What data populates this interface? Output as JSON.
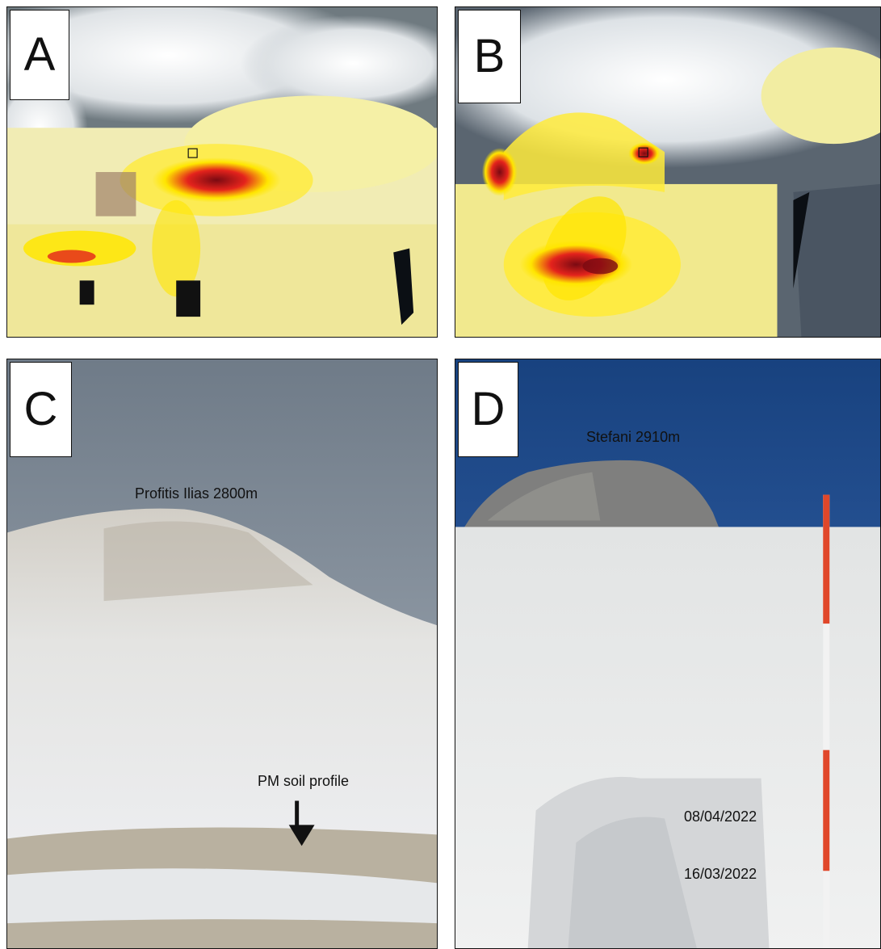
{
  "panels": [
    {
      "label": "A"
    },
    {
      "label": "B"
    },
    {
      "label": "C",
      "summit_label": "Profitis Ilias 2800m",
      "profile_label": "PM soil profile"
    },
    {
      "label": "D",
      "summit_label": "Stefani 2910m",
      "layer_labels": [
        "08/04/2022",
        "16/03/2022"
      ]
    }
  ],
  "colors": {
    "dust_low": "#f3f08a",
    "dust_mid": "#ffe600",
    "dust_high": "#e4231c",
    "dust_peak": "#7a0a12",
    "ocean": "#2b3a4a",
    "sky_overcast": "#8f9aa6",
    "sky_clear": "#1f4f9e",
    "snow": "#e9eaea",
    "pole_red": "#e0472a"
  }
}
